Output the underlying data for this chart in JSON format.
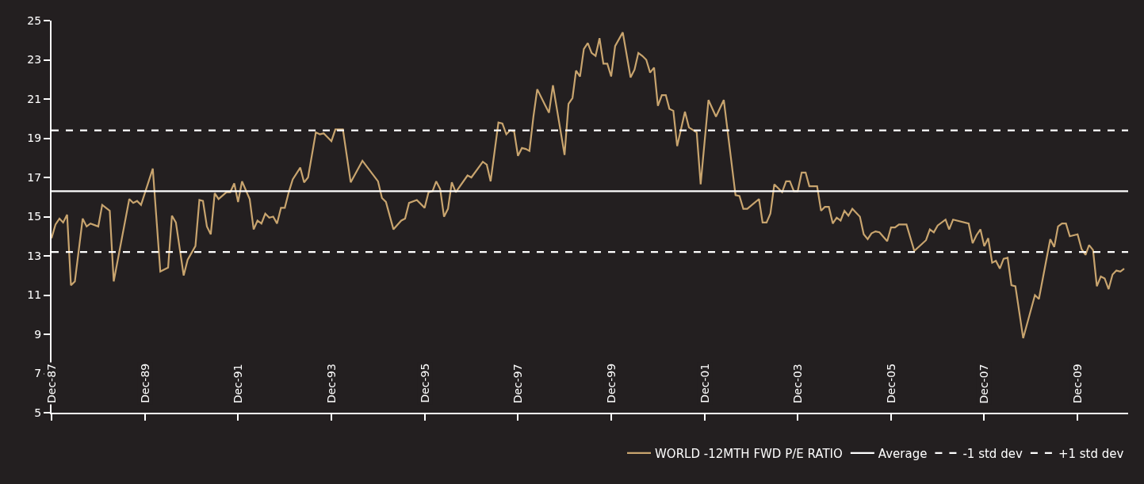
{
  "chart_data": {
    "type": "line",
    "x": [
      "1987-12",
      "1988-01",
      "1988-02",
      "1988-03",
      "1988-04",
      "1988-05",
      "1988-06",
      "1988-08",
      "1988-09",
      "1988-10",
      "1988-12",
      "1989-01",
      "1989-03",
      "1989-04",
      "1989-08",
      "1989-09",
      "1989-10",
      "1989-11",
      "1990-02",
      "1990-04",
      "1990-06",
      "1990-07",
      "1990-08",
      "1990-10",
      "1990-11",
      "1991-01",
      "1991-02",
      "1991-03",
      "1991-04",
      "1991-05",
      "1991-06",
      "1991-07",
      "1991-09",
      "1991-10",
      "1991-11",
      "1991-12",
      "1992-01",
      "1992-03",
      "1992-04",
      "1992-05",
      "1992-06",
      "1992-07",
      "1992-08",
      "1992-09",
      "1992-10",
      "1992-11",
      "1992-12",
      "1993-01",
      "1993-02",
      "1993-04",
      "1993-05",
      "1993-06",
      "1993-08",
      "1993-09",
      "1993-10",
      "1993-12",
      "1994-01",
      "1994-03",
      "1994-05",
      "1994-08",
      "1994-12",
      "1995-01",
      "1995-02",
      "1995-04",
      "1995-06",
      "1995-07",
      "1995-08",
      "1995-10",
      "1995-12",
      "1996-01",
      "1996-02",
      "1996-03",
      "1996-04",
      "1996-05",
      "1996-06",
      "1996-07",
      "1996-08",
      "1996-11",
      "1996-12",
      "1997-02",
      "1997-03",
      "1997-04",
      "1997-05",
      "1997-07",
      "1997-08",
      "1997-09",
      "1997-10",
      "1997-11",
      "1997-12",
      "1998-01",
      "1998-02",
      "1998-03",
      "1998-04",
      "1998-05",
      "1998-07",
      "1998-08",
      "1998-09",
      "1998-12",
      "1999-01",
      "1999-02",
      "1999-03",
      "1999-04",
      "1999-05",
      "1999-06",
      "1999-07",
      "1999-08",
      "1999-09",
      "1999-10",
      "1999-11",
      "1999-12",
      "2000-01",
      "2000-03",
      "2000-05",
      "2000-06",
      "2000-07",
      "2000-08",
      "2000-09",
      "2000-10",
      "2000-11",
      "2000-12",
      "2001-01",
      "2001-02",
      "2001-03",
      "2001-04",
      "2001-05",
      "2001-07",
      "2001-08",
      "2001-10",
      "2001-11",
      "2002-01",
      "2002-03",
      "2002-05",
      "2002-08",
      "2002-09",
      "2002-10",
      "2002-11",
      "2003-02",
      "2003-03",
      "2003-04",
      "2003-05",
      "2003-06",
      "2003-08",
      "2003-09",
      "2003-10",
      "2003-11",
      "2003-12",
      "2004-01",
      "2004-02",
      "2004-03",
      "2004-05",
      "2004-06",
      "2004-07",
      "2004-08",
      "2004-09",
      "2004-10",
      "2004-11",
      "2004-12",
      "2005-01",
      "2005-02",
      "2005-04",
      "2005-05",
      "2005-06",
      "2005-07",
      "2005-08",
      "2005-09",
      "2005-11",
      "2005-12",
      "2006-01",
      "2006-02",
      "2006-04",
      "2006-06",
      "2006-09",
      "2006-10",
      "2006-11",
      "2006-12",
      "2007-02",
      "2007-03",
      "2007-04",
      "2007-08",
      "2007-09",
      "2007-10",
      "2007-11",
      "2007-12",
      "2008-01",
      "2008-02",
      "2008-03",
      "2008-04",
      "2008-05",
      "2008-06",
      "2008-07",
      "2008-08",
      "2008-10",
      "2009-01",
      "2009-02",
      "2009-05",
      "2009-06",
      "2009-07",
      "2009-08",
      "2009-09",
      "2009-10",
      "2009-11",
      "2009-12",
      "2010-01",
      "2010-02",
      "2010-03",
      "2010-04",
      "2010-05",
      "2010-06",
      "2010-07",
      "2010-08",
      "2010-09",
      "2010-10",
      "2010-11",
      "2010-12"
    ],
    "series": [
      {
        "name": "WORLD -12MTH FWD P/E RATIO",
        "color": "#c8a46e",
        "values": [
          13.9,
          14.6,
          14.9,
          14.7,
          15.1,
          11.5,
          11.7,
          14.9,
          14.5,
          14.65,
          14.5,
          15.6,
          15.3,
          11.7,
          15.9,
          15.7,
          15.8,
          15.6,
          17.45,
          12.2,
          12.4,
          15.05,
          14.7,
          12.0,
          12.8,
          13.5,
          15.85,
          15.8,
          14.5,
          14.1,
          16.2,
          15.9,
          16.25,
          16.25,
          16.7,
          15.75,
          16.8,
          15.9,
          14.35,
          14.8,
          14.65,
          15.15,
          14.95,
          15.0,
          14.65,
          15.45,
          15.45,
          16.25,
          16.9,
          17.5,
          16.75,
          17.0,
          19.3,
          19.2,
          19.25,
          18.85,
          19.45,
          19.45,
          16.75,
          17.85,
          16.8,
          15.95,
          15.75,
          14.35,
          14.8,
          14.9,
          15.7,
          15.85,
          15.45,
          16.25,
          16.3,
          16.8,
          16.4,
          15.0,
          15.4,
          16.75,
          16.25,
          17.1,
          17.0,
          17.55,
          17.8,
          17.65,
          16.8,
          19.8,
          19.75,
          19.2,
          19.4,
          19.35,
          18.1,
          18.5,
          18.45,
          18.35,
          20.1,
          21.5,
          20.7,
          20.3,
          21.7,
          18.15,
          20.75,
          21.05,
          22.45,
          22.15,
          23.55,
          23.85,
          23.35,
          23.2,
          24.1,
          22.8,
          22.8,
          22.15,
          23.7,
          24.4,
          22.1,
          22.5,
          23.35,
          23.2,
          23.0,
          22.35,
          22.6,
          20.65,
          21.2,
          21.2,
          20.5,
          20.4,
          18.6,
          20.35,
          19.55,
          19.3,
          16.65,
          20.95,
          20.1,
          20.95,
          16.1,
          16.05,
          15.4,
          15.4,
          15.9,
          14.7,
          14.7,
          15.15,
          16.65,
          16.25,
          16.8,
          16.8,
          16.3,
          16.3,
          17.25,
          17.25,
          16.55,
          16.55,
          15.3,
          15.5,
          15.5,
          14.65,
          14.95,
          14.8,
          15.3,
          15.05,
          15.4,
          15.0,
          14.1,
          13.85,
          14.15,
          14.25,
          14.2,
          13.75,
          14.45,
          14.45,
          14.6,
          14.6,
          13.25,
          13.8,
          14.35,
          14.2,
          14.55,
          14.85,
          14.35,
          14.85,
          14.65,
          13.65,
          14.05,
          14.35,
          13.5,
          13.9,
          12.65,
          12.75,
          12.35,
          12.85,
          12.9,
          11.5,
          11.45,
          8.8,
          11.0,
          10.8,
          13.85,
          13.45,
          14.5,
          14.65,
          14.65,
          14.0,
          14.05,
          14.1,
          13.35,
          13.05,
          13.55,
          13.3,
          11.45,
          11.95,
          11.85,
          11.3,
          12.05,
          12.25,
          12.2,
          12.35
        ]
      }
    ],
    "xlim": [
      "1987-12",
      "2011-01"
    ],
    "xticks": [
      {
        "value": "1987-12",
        "label": "Dec-87"
      },
      {
        "value": "1989-12",
        "label": "Dec-89"
      },
      {
        "value": "1991-12",
        "label": "Dec-91"
      },
      {
        "value": "1993-12",
        "label": "Dec-93"
      },
      {
        "value": "1995-12",
        "label": "Dec-95"
      },
      {
        "value": "1997-12",
        "label": "Dec-97"
      },
      {
        "value": "1999-12",
        "label": "Dec-99"
      },
      {
        "value": "2001-12",
        "label": "Dec-01"
      },
      {
        "value": "2003-12",
        "label": "Dec-03"
      },
      {
        "value": "2005-12",
        "label": "Dec-05"
      },
      {
        "value": "2007-12",
        "label": "Dec-07"
      },
      {
        "value": "2009-12",
        "label": "Dec-09"
      }
    ],
    "ylim": [
      5,
      25
    ],
    "yticks": [
      5,
      7,
      9,
      11,
      13,
      15,
      17,
      19,
      21,
      23,
      25
    ],
    "ref_lines": [
      {
        "axis": "y",
        "value": 16.3,
        "label": "Average",
        "color": "#ffffff",
        "line_style": "solid"
      },
      {
        "axis": "y",
        "value": 13.2,
        "label": "-1 std dev",
        "color": "#ffffff",
        "line_style": "dashed"
      },
      {
        "axis": "y",
        "value": 19.4,
        "label": "+1 std dev",
        "color": "#ffffff",
        "line_style": "dashed"
      }
    ],
    "grid": false,
    "legend": "bottom right",
    "marker": "none",
    "line_style": "solid"
  }
}
